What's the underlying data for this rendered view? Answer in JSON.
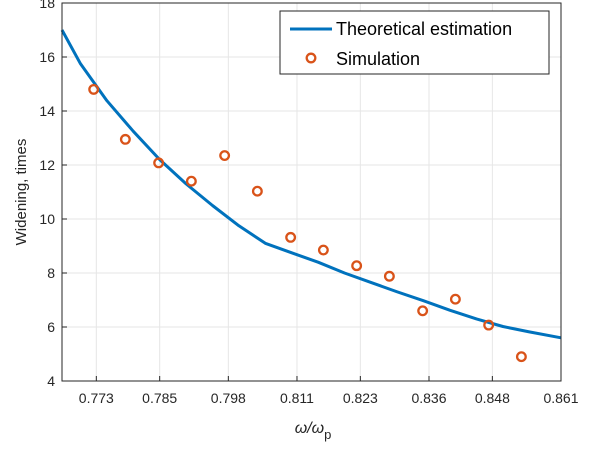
{
  "chart_data": {
    "type": "line",
    "title": "",
    "xlabel": "ω/ω",
    "xlabel_sub": "p",
    "ylabel": "Widening, times",
    "xlim": [
      0.7665,
      0.861
    ],
    "ylim": [
      4,
      18
    ],
    "x_ticks": [
      0.773,
      0.785,
      0.798,
      0.811,
      0.823,
      0.836,
      0.848,
      0.861
    ],
    "x_tick_labels": [
      "0.773",
      "0.785",
      "0.798",
      "0.811",
      "0.823",
      "0.836",
      "0.848",
      "0.861"
    ],
    "y_ticks": [
      4,
      6,
      8,
      10,
      12,
      14,
      16,
      18
    ],
    "y_tick_labels": [
      "4",
      "6",
      "8",
      "10",
      "12",
      "14",
      "16",
      "18"
    ],
    "grid": true,
    "legend_position": "top-right",
    "series": [
      {
        "name": "Theoretical estimation",
        "kind": "line",
        "color": "#0072bd",
        "x": [
          0.7665,
          0.77,
          0.775,
          0.78,
          0.785,
          0.79,
          0.795,
          0.8,
          0.805,
          0.81,
          0.815,
          0.82,
          0.825,
          0.83,
          0.835,
          0.84,
          0.845,
          0.85,
          0.855,
          0.861
        ],
        "y": [
          17.0,
          15.75,
          14.38,
          13.25,
          12.2,
          11.3,
          10.5,
          9.75,
          9.1,
          8.75,
          8.4,
          8.0,
          7.65,
          7.3,
          6.97,
          6.62,
          6.3,
          6.02,
          5.82,
          5.6
        ]
      },
      {
        "name": "Simulation",
        "kind": "scatter",
        "color": "#d95319",
        "x": [
          0.7725,
          0.7785,
          0.7848,
          0.791,
          0.7973,
          0.8035,
          0.8098,
          0.816,
          0.8223,
          0.8285,
          0.8348,
          0.841,
          0.8473,
          0.8535
        ],
        "y": [
          14.8,
          12.95,
          12.08,
          11.4,
          12.35,
          11.03,
          9.32,
          8.85,
          8.27,
          7.88,
          6.6,
          7.03,
          6.07,
          4.9
        ]
      }
    ]
  }
}
